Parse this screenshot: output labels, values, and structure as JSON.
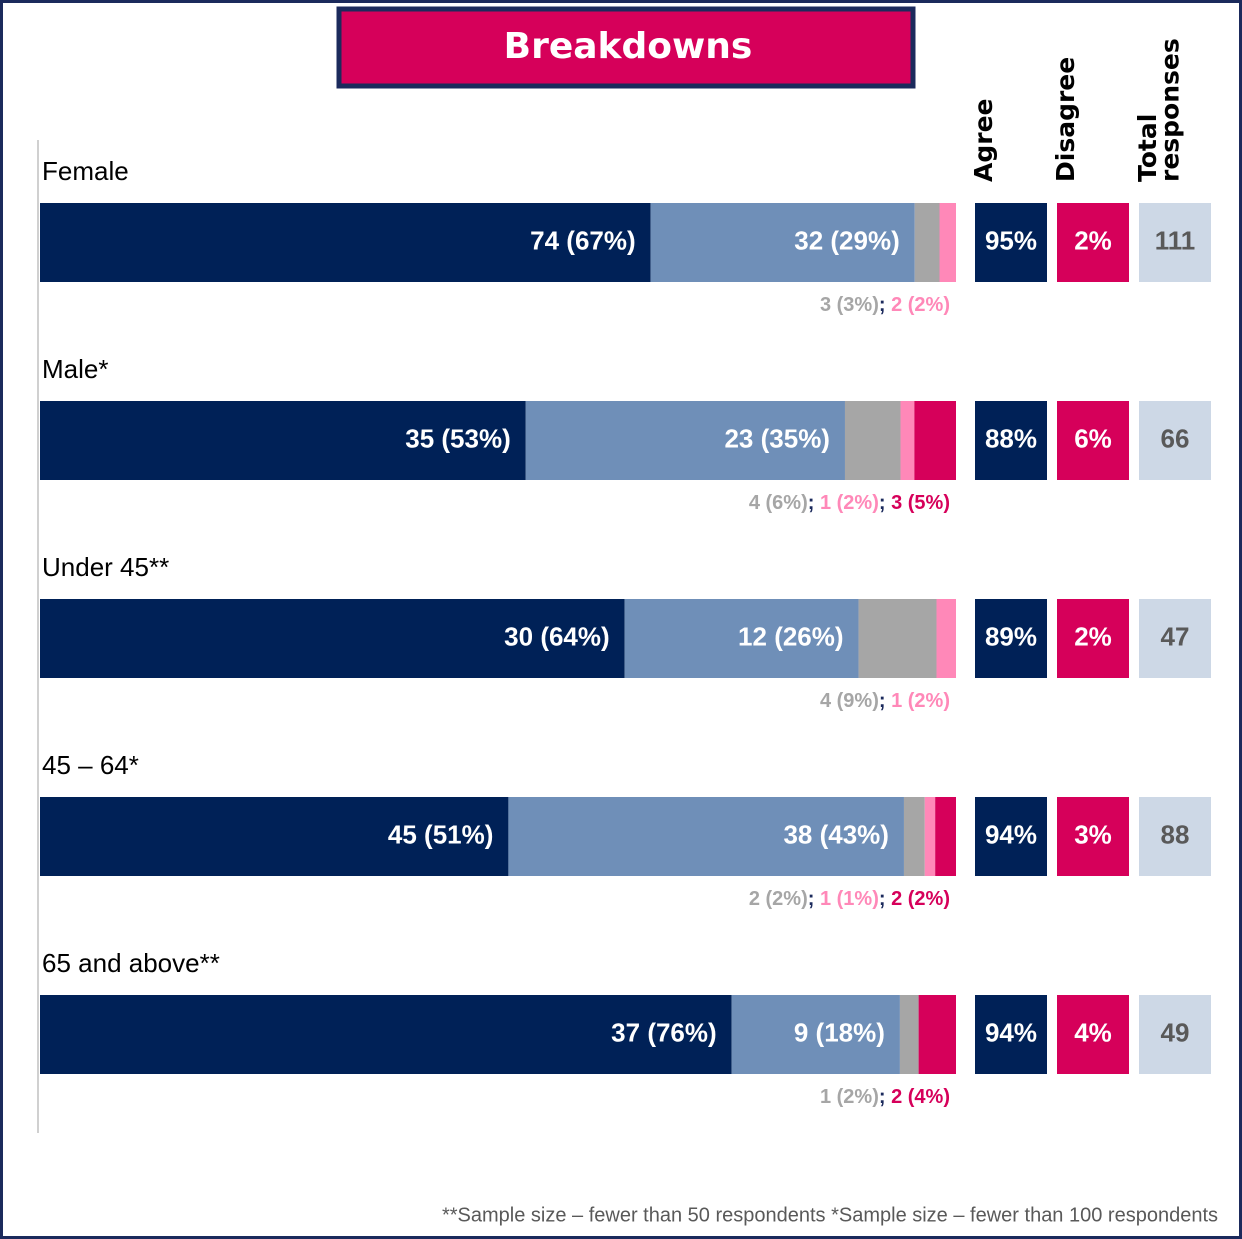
{
  "chart_data": {
    "type": "stacked-bar",
    "title": "Breakdowns",
    "categories": [
      "Female",
      "Male*",
      "Under 45**",
      "45 – 64*",
      "65 and above**"
    ],
    "series": [
      {
        "color": "#002157",
        "values": [
          74,
          35,
          30,
          45,
          37
        ],
        "value_labels": [
          "74 (67%)",
          "35 (53%)",
          "30 (64%)",
          "45 (51%)",
          "37 (76%)"
        ]
      },
      {
        "color": "#6f8fb8",
        "values": [
          32,
          23,
          12,
          38,
          9
        ],
        "value_labels": [
          "32 (29%)",
          "23 (35%)",
          "12 (26%)",
          "38 (43%)",
          "9 (18%)"
        ]
      },
      {
        "color": "#a6a6a6",
        "values": [
          3,
          4,
          4,
          2,
          1
        ],
        "value_labels": [
          "3 (3%)",
          "4 (6%)",
          "4 (9%)",
          "2 (2%)",
          "1 (2%)"
        ]
      },
      {
        "color": "#ff88b8",
        "values": [
          2,
          1,
          1,
          1,
          0
        ],
        "value_labels": [
          "2 (2%)",
          "1 (2%)",
          "1 (2%)",
          "1 (1%)",
          null
        ]
      },
      {
        "color": "#d6005a",
        "values": [
          0,
          3,
          0,
          2,
          2
        ],
        "value_labels": [
          null,
          "3 (5%)",
          null,
          "2 (2%)",
          "2 (4%)"
        ]
      }
    ],
    "separator": "; ",
    "summary": [
      {
        "header": "Agree",
        "color": "#002157",
        "values": [
          95,
          88,
          89,
          94,
          94
        ],
        "value_labels": [
          "95%",
          "88%",
          "89%",
          "94%",
          "94%"
        ]
      },
      {
        "header": "Disagree",
        "color": "#d6005a",
        "values": [
          2,
          6,
          2,
          3,
          4
        ],
        "value_labels": [
          "2%",
          "6%",
          "2%",
          "3%",
          "4%"
        ]
      },
      {
        "header": "Total responses",
        "color": "#cdd8e6",
        "values": [
          111,
          66,
          47,
          88,
          49
        ]
      }
    ],
    "footnote": "**Sample size – fewer than 50 respondents *Sample size – fewer than 100 respondents"
  }
}
